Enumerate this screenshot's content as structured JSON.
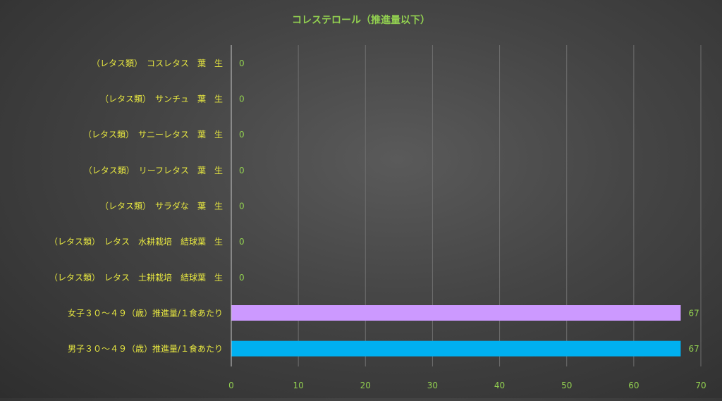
{
  "chart_data": {
    "type": "bar",
    "orientation": "horizontal",
    "title": "コレステロール（推進量以下）",
    "categories": [
      "（レタス類）　コスレタス　葉　生",
      "（レタス類）　サンチュ　葉　生",
      "（レタス類）　サニーレタス　葉　生",
      "（レタス類）　リーフレタス　葉　生",
      "（レタス類）　サラダな　葉　生",
      "（レタス類）　レタス　水耕栽培　結球葉　生",
      "（レタス類）　レタス　土耕栽培　結球葉　生",
      "女子３０～４９（歳）推進量/１食あたり",
      "男子３０～４９（歳）推進量/１食あたり"
    ],
    "values": [
      0,
      0,
      0,
      0,
      0,
      0,
      0,
      67,
      67
    ],
    "data_labels": [
      "0",
      "0",
      "0",
      "0",
      "0",
      "0",
      "0",
      "67",
      "67"
    ],
    "bar_colors": [
      "#cc99ff",
      "#cc99ff",
      "#cc99ff",
      "#cc99ff",
      "#cc99ff",
      "#cc99ff",
      "#cc99ff",
      "#cc99ff",
      "#00b0f0"
    ],
    "xlim": [
      0,
      70
    ],
    "xticks": [
      0,
      10,
      20,
      30,
      40,
      50,
      60,
      70
    ],
    "xlabel": "",
    "ylabel": "",
    "grid": true,
    "legend": "none",
    "colors": {
      "title": "#92d050",
      "category_labels": "#e8e840",
      "data_labels": "#92d050",
      "tick_labels": "#92d050",
      "gridlines": "#6e6e6e",
      "axis_line": "#c8c8c8"
    }
  }
}
